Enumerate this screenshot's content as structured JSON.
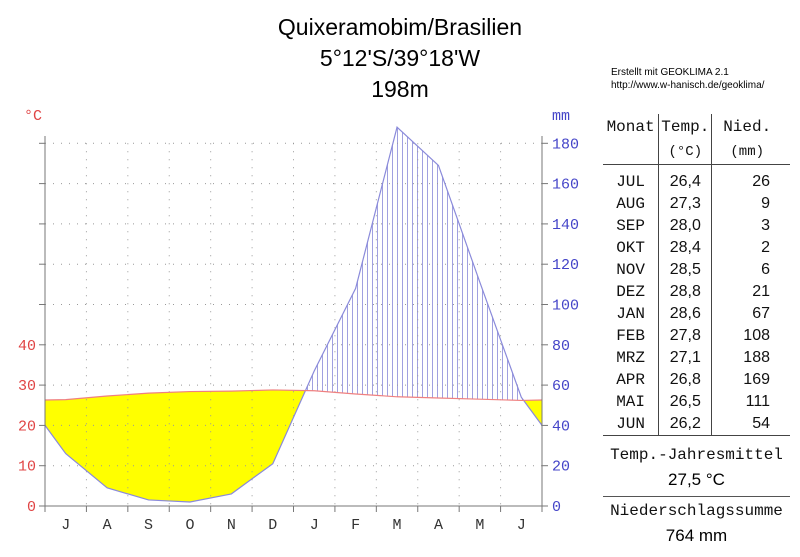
{
  "title": {
    "line1": "Quixeramobim/Brasilien",
    "line2": "5°12'S/39°18'W",
    "line3": "198m"
  },
  "attribution": {
    "line1": "Erstellt mit GEOKLIMA 2.1",
    "line2": "http://www.w-hanisch.de/geoklima/"
  },
  "chart_data": {
    "type": "line",
    "subtype": "walter-lieth-climate-diagram",
    "title": "Quixeramobim/Brasilien 5°12'S/39°18'W 198m",
    "months": [
      "JUL",
      "AUG",
      "SEP",
      "OKT",
      "NOV",
      "DEZ",
      "JAN",
      "FEB",
      "MRZ",
      "APR",
      "MAI",
      "JUN"
    ],
    "month_letters": [
      "J",
      "A",
      "S",
      "O",
      "N",
      "D",
      "J",
      "F",
      "M",
      "A",
      "M",
      "J"
    ],
    "temperature_c": [
      26.4,
      27.3,
      28.0,
      28.4,
      28.5,
      28.8,
      28.6,
      27.8,
      27.1,
      26.8,
      26.5,
      26.2
    ],
    "precipitation_mm": [
      26,
      9,
      3,
      2,
      6,
      21,
      67,
      108,
      188,
      169,
      111,
      54
    ],
    "left_axis": {
      "label": "°C",
      "ticks": [
        0,
        10,
        20,
        30,
        40
      ],
      "range": [
        0,
        95
      ]
    },
    "right_axis": {
      "label": "mm",
      "ticks": [
        0,
        20,
        40,
        60,
        80,
        100,
        120,
        140,
        160,
        180
      ],
      "range": [
        0,
        190
      ]
    },
    "scale_note": "10 °C = 20 mm",
    "grid": "dotted",
    "legend": "none",
    "humid_season_style": "vertical-blue-hatching (precipitation above temperature curve)",
    "dry_season_style": "solid yellow fill (temperature curve above precipitation)",
    "colors": {
      "dry_fill": "#ffff00",
      "hatch": "#a0a0e0",
      "precip_line": "#8a8ada",
      "temp_line": "#ef8080",
      "temp_text": "#e04444",
      "precip_text": "#4444c8",
      "grid": "#999999",
      "axis": "#777777",
      "month_text": "#333333"
    }
  },
  "table": {
    "col_headers": [
      "Monat",
      "Temp.",
      "Nied."
    ],
    "col_subheaders": [
      "",
      "(°C)",
      "(mm)"
    ],
    "rows": [
      [
        "JUL",
        "26,4",
        "26"
      ],
      [
        "AUG",
        "27,3",
        "9"
      ],
      [
        "SEP",
        "28,0",
        "3"
      ],
      [
        "OKT",
        "28,4",
        "2"
      ],
      [
        "NOV",
        "28,5",
        "6"
      ],
      [
        "DEZ",
        "28,8",
        "21"
      ],
      [
        "JAN",
        "28,6",
        "67"
      ],
      [
        "FEB",
        "27,8",
        "108"
      ],
      [
        "MRZ",
        "27,1",
        "188"
      ],
      [
        "APR",
        "26,8",
        "169"
      ],
      [
        "MAI",
        "26,5",
        "111"
      ],
      [
        "JUN",
        "26,2",
        "54"
      ]
    ]
  },
  "summary": {
    "temp_label": "Temp.-Jahresmittel",
    "temp_value": "27,5 °C",
    "precip_label": "Niederschlagssumme",
    "precip_value": "764 mm"
  }
}
